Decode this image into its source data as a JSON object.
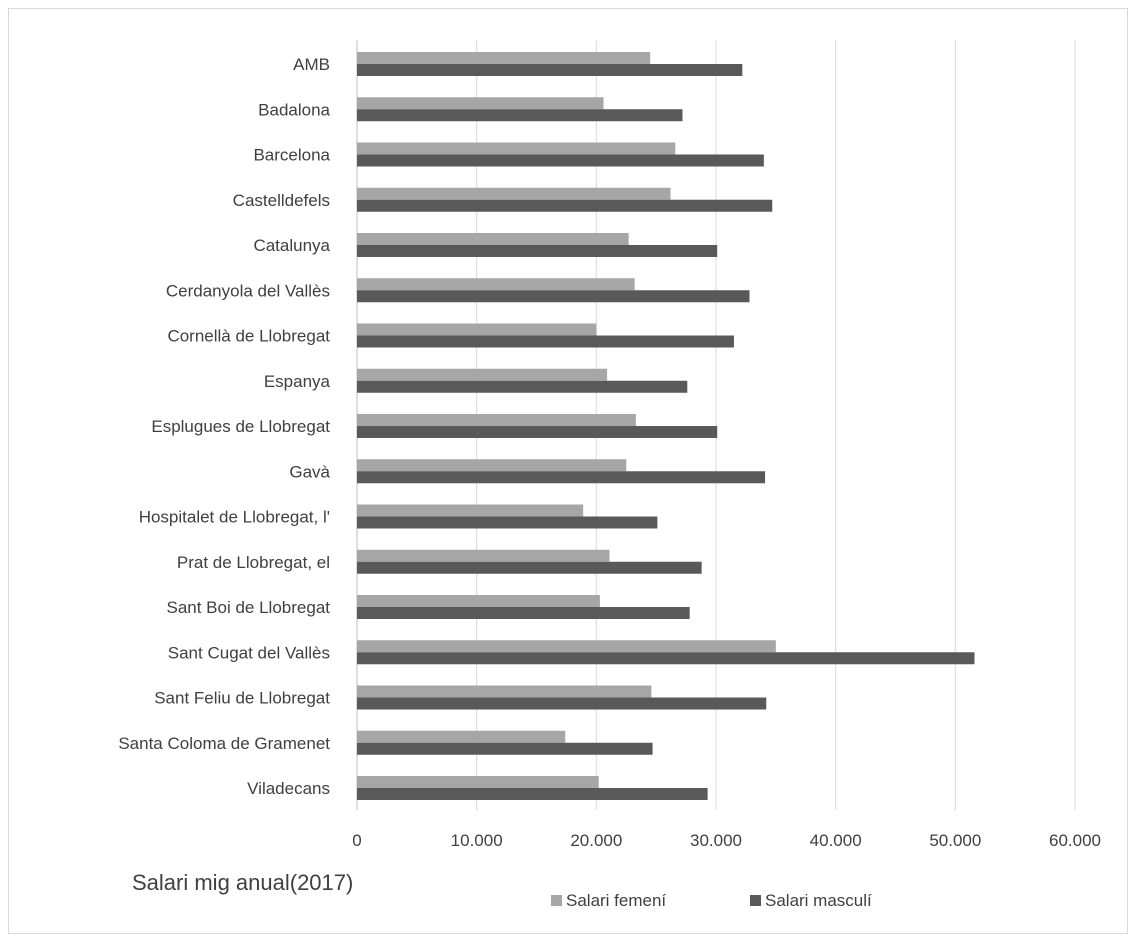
{
  "chart_data": {
    "type": "bar",
    "orientation": "horizontal",
    "title": "Salari mig anual(2017)",
    "categories": [
      "AMB",
      "Badalona",
      "Barcelona",
      "Castelldefels",
      "Catalunya",
      "Cerdanyola del Vallès",
      "Cornellà de Llobregat",
      "Espanya",
      "Esplugues de Llobregat",
      "Gavà",
      "Hospitalet de Llobregat, l'",
      "Prat de Llobregat, el",
      "Sant Boi de Llobregat",
      "Sant Cugat del Vallès",
      "Sant Feliu de Llobregat",
      "Santa Coloma de Gramenet",
      "Viladecans"
    ],
    "series": [
      {
        "name": "Salari femení",
        "color": "#a6a6a6",
        "values": [
          24500,
          20600,
          26600,
          26200,
          22700,
          23200,
          20000,
          20900,
          23300,
          22500,
          18900,
          21100,
          20300,
          35000,
          24600,
          17400,
          20200
        ]
      },
      {
        "name": "Salari masculí",
        "color": "#595959",
        "values": [
          32200,
          27200,
          34000,
          34700,
          30100,
          32800,
          31500,
          27600,
          30100,
          34100,
          25100,
          28800,
          27800,
          51600,
          34200,
          24700,
          29300
        ]
      }
    ],
    "xlim": [
      0,
      60000
    ],
    "xticks": [
      0,
      10000,
      20000,
      30000,
      40000,
      50000,
      60000
    ],
    "xtick_labels": [
      "0",
      "10.000",
      "20.000",
      "30.000",
      "40.000",
      "50.000",
      "60.000"
    ],
    "grid": true,
    "legend_position": "bottom"
  }
}
